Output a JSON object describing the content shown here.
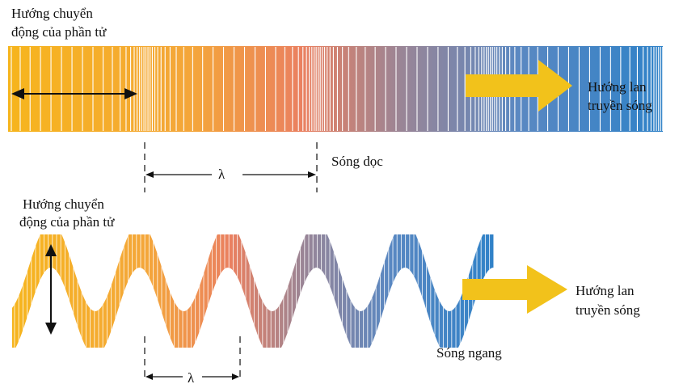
{
  "colors": {
    "gradient": [
      "#f6b51d",
      "#f4a63a",
      "#ea8060",
      "#9a8596",
      "#5a88c2",
      "#2f82c8"
    ],
    "arrow": "#f2c21b",
    "stripe": "#ffffff",
    "ink": "#111111"
  },
  "longitudinal": {
    "particle_label_line1": "Hướng chuyển",
    "particle_label_line2": "động của phần tử",
    "propagation_line1": "Hướng lan",
    "propagation_line2": "truyền sóng",
    "wave_name": "Sóng dọc",
    "wavelength_symbol": "λ"
  },
  "transverse": {
    "particle_label_line1": "Hướng chuyển",
    "particle_label_line2": "động của phần tử",
    "propagation_line1": "Hướng lan",
    "propagation_line2": "truyền sóng",
    "wave_name": "Sóng ngang",
    "wavelength_symbol": "λ"
  }
}
